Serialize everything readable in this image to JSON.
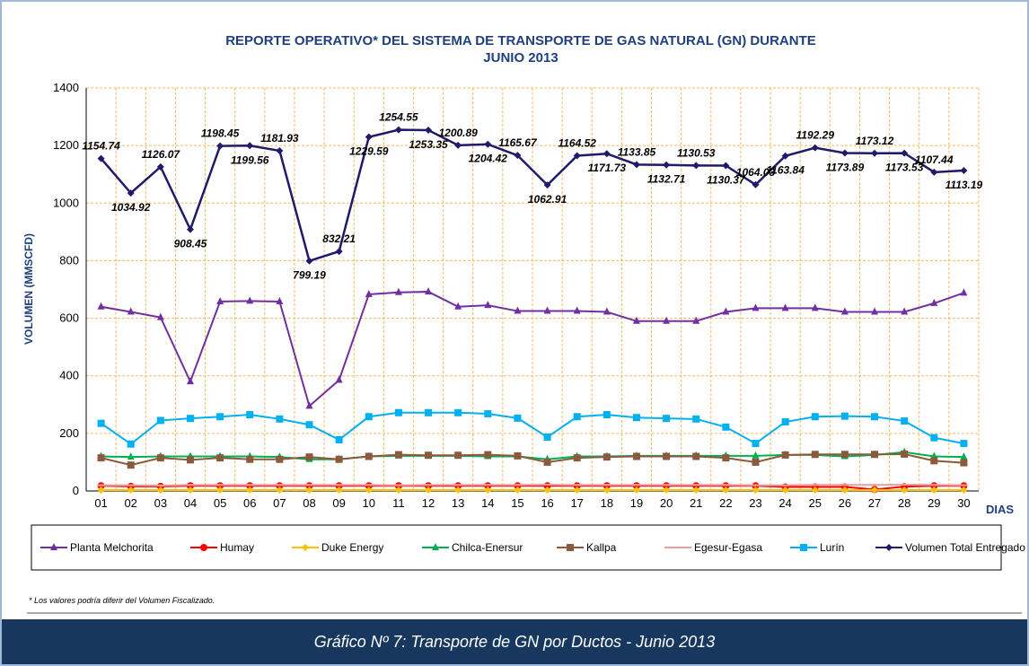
{
  "chart_data": {
    "type": "line",
    "title": [
      "REPORTE OPERATIVO* DEL SISTEMA DE TRANSPORTE DE GAS NATURAL (GN) DURANTE",
      "JUNIO 2013"
    ],
    "y_label": "VOLUMEN (MMSCFD)",
    "x_label": "DIAS",
    "footnote": "* Los valores podría diferir del Volumen Fiscalizado.",
    "caption": "Gráfico Nº 7: Transporte de GN por Ductos - Junio 2013",
    "categories": [
      "01",
      "02",
      "03",
      "04",
      "05",
      "06",
      "07",
      "08",
      "09",
      "10",
      "11",
      "12",
      "13",
      "14",
      "15",
      "16",
      "17",
      "18",
      "19",
      "20",
      "21",
      "22",
      "23",
      "24",
      "25",
      "26",
      "27",
      "28",
      "29",
      "30"
    ],
    "ylim": [
      0,
      1400
    ],
    "yticks": [
      0,
      200,
      400,
      600,
      800,
      1000,
      1200,
      1400
    ],
    "grid": true,
    "series": [
      {
        "name": "Planta Melchorita",
        "color": "#7030a0",
        "marker": "triangle",
        "values": [
          640,
          622,
          603,
          380,
          658,
          660,
          658,
          295,
          385,
          683,
          690,
          692,
          640,
          645,
          625,
          625,
          625,
          622,
          590,
          590,
          590,
          622,
          635,
          635,
          635,
          622,
          622,
          622,
          652,
          688
        ]
      },
      {
        "name": "Humay",
        "color": "#ff0000",
        "marker": "circle",
        "values": [
          18,
          16,
          16,
          18,
          18,
          18,
          18,
          18,
          18,
          18,
          18,
          18,
          18,
          18,
          18,
          18,
          18,
          18,
          18,
          18,
          18,
          18,
          18,
          14,
          14,
          14,
          5,
          15,
          18,
          18
        ]
      },
      {
        "name": "Duke Energy",
        "color": "#ffc000",
        "marker": "diamond",
        "values": [
          3,
          3,
          3,
          3,
          3,
          3,
          3,
          3,
          3,
          3,
          3,
          3,
          3,
          3,
          3,
          3,
          3,
          3,
          3,
          3,
          3,
          3,
          3,
          3,
          3,
          3,
          3,
          3,
          3,
          3
        ]
      },
      {
        "name": "Chilca-Enersur",
        "color": "#00b050",
        "marker": "triangle",
        "values": [
          120,
          118,
          120,
          120,
          120,
          120,
          118,
          110,
          110,
          120,
          122,
          122,
          122,
          120,
          120,
          110,
          120,
          120,
          122,
          122,
          122,
          122,
          122,
          125,
          125,
          120,
          125,
          135,
          120,
          118
        ]
      },
      {
        "name": "Kallpa",
        "color": "#8b5a3c",
        "marker": "square",
        "values": [
          115,
          90,
          115,
          108,
          115,
          110,
          110,
          118,
          110,
          120,
          126,
          124,
          124,
          126,
          122,
          100,
          115,
          118,
          120,
          120,
          120,
          115,
          100,
          125,
          127,
          127,
          127,
          128,
          105,
          98
        ]
      },
      {
        "name": "Egesur-Egasa",
        "color": "#e6a0a0",
        "marker": "dash",
        "values": [
          20,
          20,
          19,
          21,
          21,
          21,
          21,
          21,
          21,
          21,
          20,
          21,
          21,
          21,
          21,
          22,
          21,
          21,
          21,
          21,
          21,
          21,
          20,
          20,
          21,
          21,
          21,
          22,
          21,
          20
        ]
      },
      {
        "name": "Lurín",
        "color": "#00b0f0",
        "marker": "square",
        "values": [
          235,
          163,
          245,
          252,
          258,
          265,
          250,
          230,
          178,
          258,
          272,
          272,
          272,
          268,
          253,
          187,
          258,
          265,
          255,
          252,
          250,
          222,
          165,
          240,
          258,
          260,
          258,
          243,
          185,
          165
        ]
      },
      {
        "name": "Volumen Total Entregado",
        "color": "#1f1a6b",
        "marker": "diamond",
        "data_labels": true,
        "values": [
          1154.74,
          1034.92,
          1126.07,
          908.45,
          1198.45,
          1199.56,
          1181.93,
          799.19,
          832.21,
          1229.59,
          1254.55,
          1253.35,
          1200.89,
          1204.42,
          1165.67,
          1062.91,
          1164.52,
          1171.73,
          1133.85,
          1132.71,
          1130.53,
          1130.37,
          1064.03,
          1163.84,
          1192.29,
          1173.89,
          1173.12,
          1173.53,
          1107.44,
          1113.19
        ]
      }
    ]
  }
}
